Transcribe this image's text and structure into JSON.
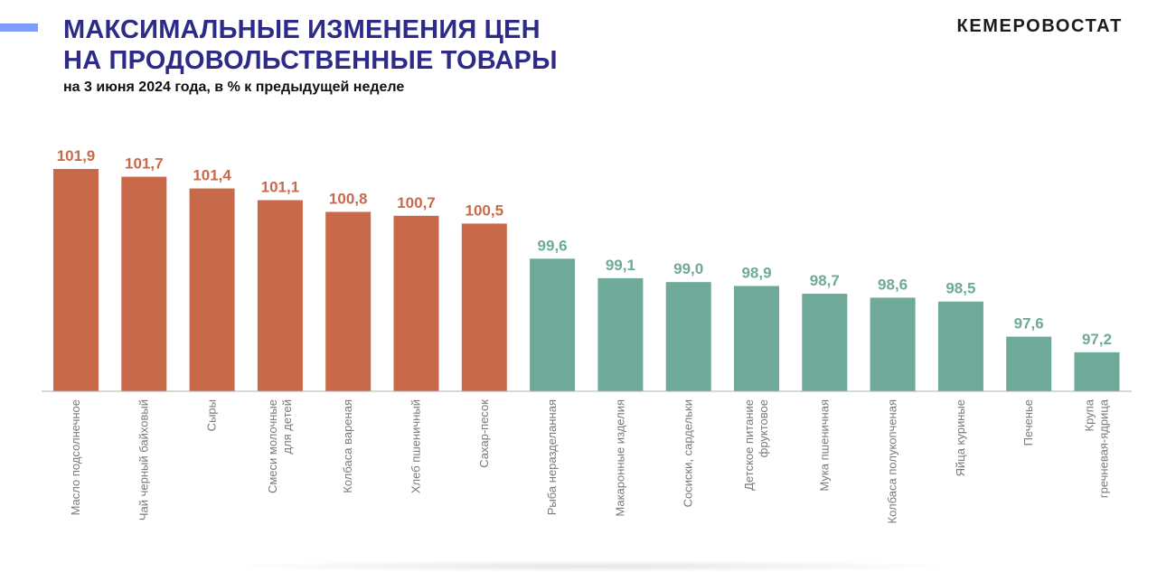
{
  "header": {
    "title_line1": "МАКСИМАЛЬНЫЕ ИЗМЕНЕНИЯ ЦЕН",
    "title_line2": "НА ПРОДОВОЛЬСТВЕННЫЕ ТОВАРЫ",
    "subtitle": "на 3 июня 2024 года, в % к предыдущей неделе",
    "brand": "КЕМЕРОВОСТАТ"
  },
  "colors": {
    "increase": "#c8694a",
    "decrease": "#6fa99a",
    "title": "#2e2b86",
    "accent": "#7f9cff",
    "axis": "#b0b0b0",
    "category_label": "#7a7a7a"
  },
  "chart_data": {
    "type": "bar",
    "title": "МАКСИМАЛЬНЫЕ ИЗМЕНЕНИЯ ЦЕН НА ПРОДОВОЛЬСТВЕННЫЕ ТОВАРЫ",
    "subtitle": "на 3 июня 2024 года, в % к предыдущей неделе",
    "categories": [
      [
        "Масло подсолнечное"
      ],
      [
        "Чай черный байховый"
      ],
      [
        "Сыры"
      ],
      [
        "Смеси молочные",
        "для детей"
      ],
      [
        "Колбаса вареная"
      ],
      [
        "Хлеб пшеничный"
      ],
      [
        "Сахар-песок"
      ],
      [
        "Рыба неразделанная"
      ],
      [
        "Макаронные изделия"
      ],
      [
        "Сосиски, сардельки"
      ],
      [
        "Детское питание",
        "фруктовое"
      ],
      [
        "Мука пшеничная"
      ],
      [
        "Колбаса полукопченая"
      ],
      [
        "Яйца куриные"
      ],
      [
        "Печенье"
      ],
      [
        "Крупа",
        "гречневая-ядрица"
      ]
    ],
    "values": [
      101.9,
      101.7,
      101.4,
      101.1,
      100.8,
      100.7,
      100.5,
      99.6,
      99.1,
      99.0,
      98.9,
      98.7,
      98.6,
      98.5,
      97.6,
      97.2
    ],
    "value_labels": [
      "101,9",
      "101,7",
      "101,4",
      "101,1",
      "100,8",
      "100,7",
      "100,5",
      "99,6",
      "99,1",
      "99,0",
      "98,9",
      "98,7",
      "98,6",
      "98,5",
      "97,6",
      "97,2"
    ],
    "groups": [
      "increase",
      "increase",
      "increase",
      "increase",
      "increase",
      "increase",
      "increase",
      "decrease",
      "decrease",
      "decrease",
      "decrease",
      "decrease",
      "decrease",
      "decrease",
      "decrease",
      "decrease"
    ],
    "ylim": [
      96.2,
      101.9
    ],
    "grid": false,
    "legend": "none"
  }
}
